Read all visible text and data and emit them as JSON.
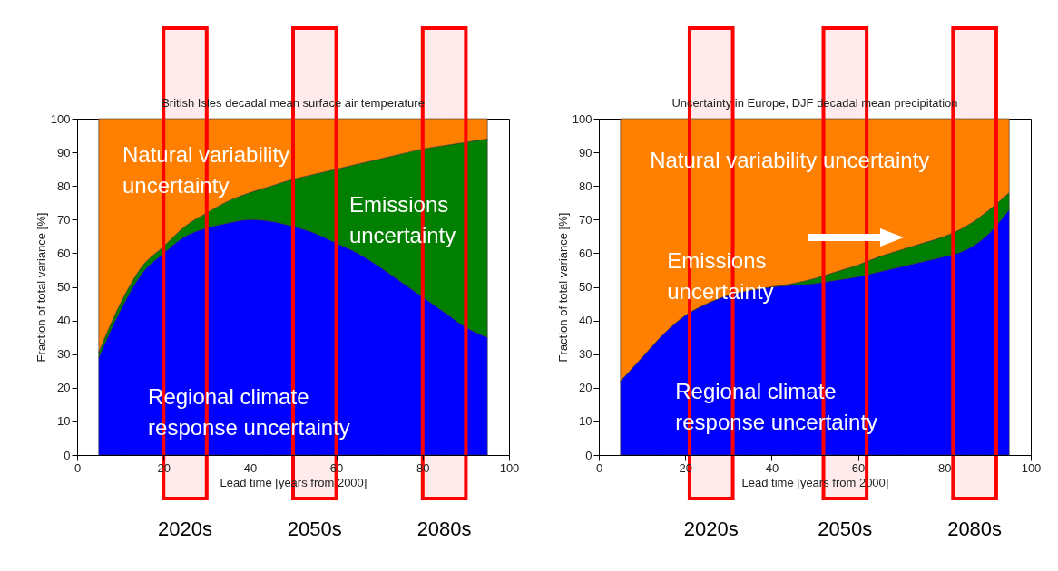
{
  "chart_data": [
    {
      "type": "area",
      "title": "British Isles decadal mean surface air temperature",
      "xlabel": "Lead time  [years from 2000]",
      "ylabel": "Fraction of total variance  [%]",
      "stacked": true,
      "x": [
        5,
        10,
        15,
        20,
        25,
        30,
        35,
        40,
        45,
        50,
        55,
        60,
        65,
        70,
        75,
        80,
        85,
        90,
        95
      ],
      "series": [
        {
          "name": "Regional climate\nresponse uncertainty",
          "color": "#0000ff",
          "values": [
            29,
            43,
            54,
            60,
            65,
            67.5,
            69,
            70,
            69.5,
            68,
            66,
            63,
            60,
            56,
            51.5,
            47,
            42.5,
            38,
            35
          ]
        },
        {
          "name": "Emissions\nuncertainty",
          "color": "#007f00",
          "values": [
            1.5,
            2,
            2,
            2,
            3,
            4.5,
            6.5,
            8,
            10.5,
            14,
            17.5,
            22,
            26.5,
            32,
            38,
            44,
            49.5,
            55,
            59
          ]
        },
        {
          "name": "Natural variability\nuncertainty",
          "color": "#ff8000",
          "values": [
            69.5,
            55,
            44,
            38,
            32,
            28,
            24.5,
            22,
            20,
            18,
            16.5,
            15,
            13.5,
            12,
            10.5,
            9,
            8,
            7,
            6
          ]
        }
      ],
      "xlim": [
        0,
        100
      ],
      "xticks": [
        0,
        20,
        40,
        60,
        80,
        100
      ],
      "ylim": [
        0,
        100
      ],
      "yticks": [
        0,
        10,
        20,
        30,
        40,
        50,
        60,
        70,
        80,
        90,
        100
      ],
      "grid": false,
      "legend": false,
      "bands": [
        {
          "axis": "x",
          "from": 20,
          "to": 30,
          "label": "2020s",
          "color": "#ff0000"
        },
        {
          "axis": "x",
          "from": 50,
          "to": 60,
          "label": "2050s",
          "color": "#ff0000"
        },
        {
          "axis": "x",
          "from": 80,
          "to": 90,
          "label": "2080s",
          "color": "#ff0000"
        }
      ]
    },
    {
      "type": "area",
      "title": "Uncertainty in Europe, DJF decadal mean precipitation",
      "xlabel": "Lead time  [years from 2000]",
      "ylabel": "Fraction of total variance  [%]",
      "stacked": true,
      "x": [
        5,
        10,
        15,
        20,
        25,
        30,
        35,
        40,
        45,
        50,
        55,
        60,
        65,
        70,
        75,
        80,
        85,
        90,
        95
      ],
      "series": [
        {
          "name": "Regional climate\nresponse uncertainty",
          "color": "#0000ff",
          "values": [
            22,
            29,
            36,
            41.5,
            45,
            47.5,
            49,
            50,
            50.5,
            51,
            52,
            53,
            54.5,
            56,
            57.5,
            59,
            61,
            65.5,
            73
          ]
        },
        {
          "name": "Emissions\nuncertainty",
          "color": "#007f00",
          "values": [
            0,
            0,
            0,
            0,
            0,
            0,
            0,
            0,
            0.5,
            1.5,
            2.5,
            3.5,
            4.5,
            5,
            5.5,
            6,
            7,
            7,
            5
          ]
        },
        {
          "name": "Natural variability uncertainty",
          "color": "#ff8000",
          "values": [
            78,
            71,
            64,
            58.5,
            55,
            52.5,
            51,
            50,
            49,
            47.5,
            45.5,
            43.5,
            41,
            39,
            37,
            35,
            32,
            27.5,
            22
          ]
        }
      ],
      "xlim": [
        0,
        100
      ],
      "xticks": [
        0,
        20,
        40,
        60,
        80,
        100
      ],
      "ylim": [
        0,
        100
      ],
      "yticks": [
        0,
        10,
        20,
        30,
        40,
        50,
        60,
        70,
        80,
        90,
        100
      ],
      "grid": false,
      "legend": false,
      "bands": [
        {
          "axis": "x",
          "from": 21,
          "to": 31,
          "label": "2020s",
          "color": "#ff0000"
        },
        {
          "axis": "x",
          "from": 52,
          "to": 62,
          "label": "2050s",
          "color": "#ff0000"
        },
        {
          "axis": "x",
          "from": 82,
          "to": 92,
          "label": "2080s",
          "color": "#ff0000"
        }
      ]
    }
  ]
}
